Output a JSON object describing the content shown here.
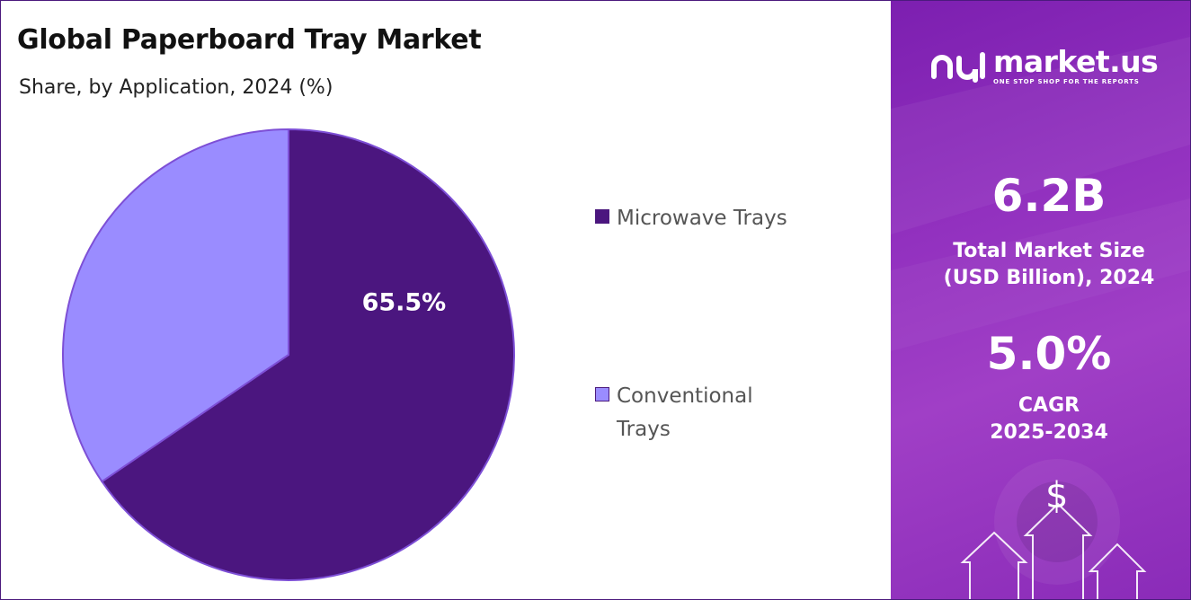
{
  "header": {
    "title": "Global Paperboard Tray Market",
    "subtitle": "Share, by Application, 2024 (%)"
  },
  "chart_data": {
    "type": "pie",
    "title": "Global Paperboard Tray Market",
    "subtitle": "Share, by Application, 2024 (%)",
    "categories": [
      "Microwave Trays",
      "Conventional Trays"
    ],
    "values": [
      65.5,
      34.5
    ],
    "data_labels": [
      "65.5%",
      ""
    ],
    "colors": [
      "#4b167f",
      "#9a8cff"
    ],
    "slice_border_color": "#7d4fd6",
    "legend_placement": "right"
  },
  "legend": {
    "items": [
      {
        "label": "Microwave Trays",
        "color": "#4b167f"
      },
      {
        "label": "Conventional Trays",
        "color": "#9a8cff"
      }
    ]
  },
  "brand": {
    "name": "market.us",
    "tagline": "ONE STOP SHOP FOR THE REPORTS",
    "icon": "market-us-logo-icon"
  },
  "stats": {
    "market_size_value": "6.2B",
    "market_size_label_line1": "Total Market Size",
    "market_size_label_line2": "(USD Billion), 2024",
    "cagr_value": "5.0%",
    "cagr_label_line1": "CAGR",
    "cagr_label_line2": "2025-2034"
  },
  "decoration": {
    "currency_symbol": "$",
    "icon": "growth-arrows-icon"
  },
  "colors": {
    "panel_dark": "#7c1fb0",
    "panel_light": "#a03fc6",
    "frame_border": "#4b1a7d"
  }
}
